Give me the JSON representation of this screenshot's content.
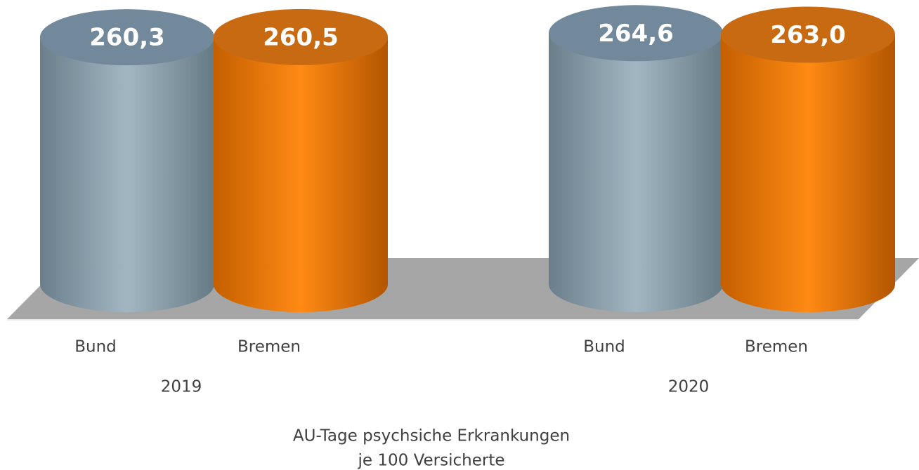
{
  "chart_data": {
    "type": "cylinder-bar",
    "title_lines": [
      "AU-Tage psychsiche Erkrankungen",
      "je 100 Versicherte"
    ],
    "groups": [
      {
        "name": "2019",
        "categories": [
          "Bund",
          "Bremen"
        ],
        "values": [
          260.3,
          260.5
        ],
        "value_labels": [
          "260,3",
          "260,5"
        ]
      },
      {
        "name": "2020",
        "categories": [
          "Bund",
          "Bremen"
        ],
        "values": [
          264.6,
          263.0
        ],
        "value_labels": [
          "264,6",
          "263,0"
        ]
      }
    ],
    "colors": [
      "#8fa3af",
      "#ff8000"
    ],
    "ylim": [
      0,
      270
    ]
  }
}
